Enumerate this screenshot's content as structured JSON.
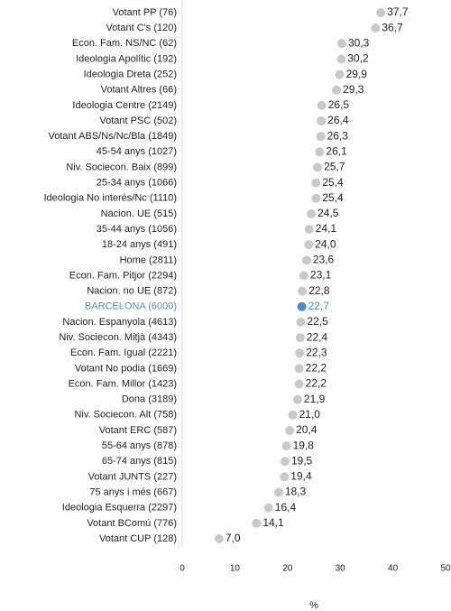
{
  "chart_data": {
    "type": "dot",
    "categories": [
      "Votant PP (76)",
      "Votant C's (120)",
      "Econ. Fam. NS/NC (62)",
      "Ideologia Apolític (192)",
      "Ideologia Dreta (252)",
      "Votant Altres (66)",
      "Ideologia Centre (2149)",
      "Votant PSC (502)",
      "Votant ABS/Ns/Nc/Bla (1849)",
      "45-54 anys (1027)",
      "Niv. Sociecon. Baix (899)",
      "25-34 anys (1066)",
      "Ideologia No interès/Nc (1110)",
      "Nacion. UE (515)",
      "35-44 anys (1056)",
      "18-24 anys (491)",
      "Home (2811)",
      "Econ. Fam. Pitjor (2294)",
      "Nacion. no UE (872)",
      "BARCELONA (6000)",
      "Nacion. Espanyola (4613)",
      "Niv. Sociecon. Mitjà (4343)",
      "Econ. Fam. Igual (2221)",
      "Votant No podia (1669)",
      "Econ. Fam. Millor (1423)",
      "Dona (3189)",
      "Niv. Sociecon. Alt (758)",
      "Votant ERC (587)",
      "55-64 anys (878)",
      "65-74 anys (815)",
      "Votant JUNTS (227)",
      "75 anys i més (667)",
      "Ideologia Esquerra (2297)",
      "Votant BComú (776)",
      "Votant CUP (128)"
    ],
    "values": [
      37.7,
      36.7,
      30.3,
      30.2,
      29.9,
      29.3,
      26.5,
      26.4,
      26.3,
      26.1,
      25.7,
      25.4,
      25.4,
      24.5,
      24.1,
      24.0,
      23.6,
      23.1,
      22.8,
      22.7,
      22.5,
      22.4,
      22.3,
      22.2,
      22.2,
      21.9,
      21.0,
      20.4,
      19.8,
      19.5,
      19.4,
      18.3,
      16.4,
      14.1,
      7.0
    ],
    "value_labels": [
      "37,7",
      "36,7",
      "30,3",
      "30,2",
      "29,9",
      "29,3",
      "26,5",
      "26,4",
      "26,3",
      "26,1",
      "25,7",
      "25,4",
      "25,4",
      "24,5",
      "24,1",
      "24,0",
      "23,6",
      "23,1",
      "22,8",
      "22,7",
      "22,5",
      "22,4",
      "22,3",
      "22,2",
      "22,2",
      "21,9",
      "21,0",
      "20,4",
      "19,8",
      "19,5",
      "19,4",
      "18,3",
      "16,4",
      "14,1",
      "7,0"
    ],
    "color": "#c9c9c9",
    "highlight": "BARCELONA (6000)",
    "highlight_color": "#4a8fcb",
    "xlim": [
      0,
      50
    ],
    "xticks": [
      0,
      10,
      20,
      30,
      40,
      50
    ],
    "xlabel": "%"
  }
}
